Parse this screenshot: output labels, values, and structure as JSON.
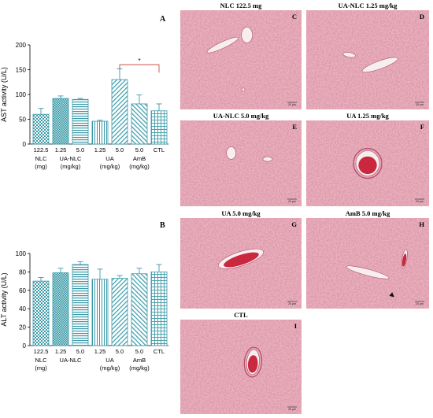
{
  "colors": {
    "bar_teal": "#3a9aa8",
    "tissue_base": "#e8a7b4",
    "tissue_light": "#f2c6cf",
    "vessel_blood": "#c9283e",
    "vessel_lumen": "#f7eef0"
  },
  "chart_data": [
    {
      "panel": "A",
      "type": "bar",
      "ylabel": "AST activity (U/L)",
      "ylim": [
        0,
        200
      ],
      "yticks": [
        "0",
        "50",
        "100",
        "150",
        "200"
      ],
      "categories": [
        "122.5",
        "1.25",
        "5.0",
        "1.25",
        "5.0",
        "5.0",
        "CTL"
      ],
      "values": [
        60,
        92,
        90,
        46,
        130,
        81,
        67
      ],
      "errors": [
        12,
        5,
        2,
        2,
        22,
        18,
        14
      ],
      "patterns": [
        "teal-check",
        "dense-check",
        "horizontal",
        "vertical",
        "diagonal",
        "diagonal-rev",
        "crosshatch"
      ],
      "groups": [
        {
          "line1": "NLC",
          "line2": "(mg)"
        },
        {
          "line1": "UA-NLC",
          "line2": "(mg/kg)"
        },
        {
          "line1": "UA",
          "line2": "(mg/kg)"
        },
        {
          "line1": "AmB",
          "line2": "(mg/kg)"
        }
      ],
      "significance": {
        "label": "*",
        "from": 4,
        "to": 6
      }
    },
    {
      "panel": "B",
      "type": "bar",
      "ylabel": "ALT activity (U/L)",
      "ylim": [
        0,
        100
      ],
      "yticks": [
        "0",
        "20",
        "40",
        "60",
        "80",
        "100"
      ],
      "categories": [
        "122.5",
        "1.25",
        "5.0",
        "1.25",
        "5.0",
        "5.0",
        "CTL"
      ],
      "values": [
        70,
        79,
        88,
        72,
        73,
        78,
        80
      ],
      "errors": [
        4,
        5,
        3,
        11,
        3,
        6,
        8
      ],
      "patterns": [
        "teal-check",
        "dense-check",
        "horizontal",
        "vertical",
        "diagonal",
        "diagonal-rev",
        "crosshatch"
      ],
      "groups": [
        {
          "line1": "NLC",
          "line2": "(mg)"
        },
        {
          "line1": "UA-NLC",
          "line2": ""
        },
        {
          "line1": "UA",
          "line2": "(mg/kg)"
        },
        {
          "line1": "AmB",
          "line2": "(mg/kg)"
        }
      ]
    }
  ],
  "micrographs": [
    {
      "title": "NLC 122.5 mg",
      "letter": "C",
      "scale": "20 μm"
    },
    {
      "title": "UA-NLC 1.25 mg/kg",
      "letter": "D",
      "scale": "20 μm"
    },
    {
      "title": "UA-NLC 5.0 mg/kg",
      "letter": "E",
      "scale": "20 μm"
    },
    {
      "title": "UA 1.25 mg/kg",
      "letter": "F",
      "scale": "20 μm"
    },
    {
      "title": "UA 5.0 mg/kg",
      "letter": "G",
      "scale": "20 μm"
    },
    {
      "title": "AmB 5.0 mg/kg",
      "letter": "H",
      "scale": "20 μm"
    },
    {
      "title": "CTL",
      "letter": "I",
      "scale": "20 μm"
    }
  ]
}
